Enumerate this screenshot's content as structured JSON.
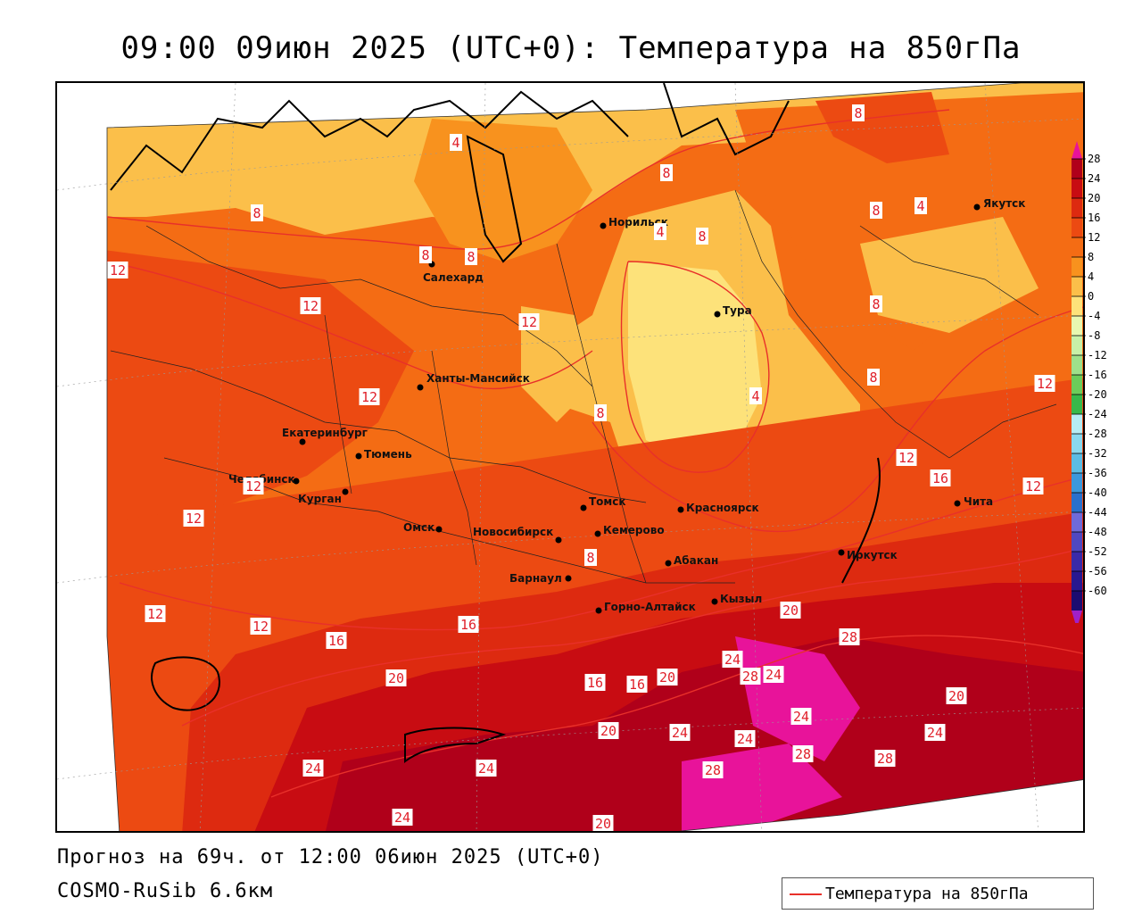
{
  "title": "09:00 09июн 2025 (UTC+0): Температура на 850гПа",
  "footer": {
    "forecast": "Прогноз на 69ч. от 12:00 06июн 2025 (UTC+0)",
    "model": "COSMO-RuSib 6.6км"
  },
  "legend": {
    "label": "Температура на 850гПа",
    "color": "#e8302a"
  },
  "colorbar": {
    "labels": [
      "28",
      "24",
      "20",
      "16",
      "12",
      "8",
      "4",
      "0",
      "-4",
      "-8",
      "-12",
      "-16",
      "-20",
      "-24",
      "-28",
      "-32",
      "-36",
      "-40",
      "-44",
      "-48",
      "-52",
      "-56",
      "-60"
    ],
    "colors": [
      "#b0001a",
      "#c80c12",
      "#dd2a10",
      "#ec4a12",
      "#f46c14",
      "#f8921e",
      "#fbbf4a",
      "#fde27a",
      "#e8f7b0",
      "#c8f0a8",
      "#9ee08a",
      "#6ccc5a",
      "#38b84a",
      "#b6ecf4",
      "#8ad8ee",
      "#5cbce4",
      "#3c98dc",
      "#2a70cc",
      "#6f6ad8",
      "#5048c0",
      "#3a2aa8",
      "#281890",
      "#1c0c70"
    ],
    "top_color": "#e8139a",
    "bottom_color": "#a020c8"
  },
  "cities": [
    {
      "name": "Якутск"
    },
    {
      "name": "Норильск"
    },
    {
      "name": "Салехард"
    },
    {
      "name": "Тура"
    },
    {
      "name": "Ханты-Мансийск"
    },
    {
      "name": "Екатеринбург"
    },
    {
      "name": "Тюмень"
    },
    {
      "name": "Челябинск"
    },
    {
      "name": "Курган"
    },
    {
      "name": "Омск"
    },
    {
      "name": "Новосибирск"
    },
    {
      "name": "Томск"
    },
    {
      "name": "Кемерово"
    },
    {
      "name": "Красноярск"
    },
    {
      "name": "Барнаул"
    },
    {
      "name": "Абакан"
    },
    {
      "name": "Иркутск"
    },
    {
      "name": "Чита"
    },
    {
      "name": "Кызыл"
    },
    {
      "name": "Горно-Алтайск"
    }
  ],
  "contour_labels": [
    "8",
    "4",
    "8",
    "8",
    "8",
    "4",
    "4",
    "8",
    "8",
    "8",
    "12",
    "12",
    "8",
    "12",
    "8",
    "4",
    "8",
    "12",
    "12",
    "12",
    "16",
    "12",
    "12",
    "12",
    "12",
    "16",
    "12",
    "16",
    "20",
    "16",
    "16",
    "20",
    "28",
    "24",
    "24",
    "28",
    "24",
    "20",
    "24",
    "20",
    "24",
    "28",
    "28",
    "24",
    "28",
    "20",
    "24",
    "24",
    "24",
    "20",
    "8"
  ]
}
